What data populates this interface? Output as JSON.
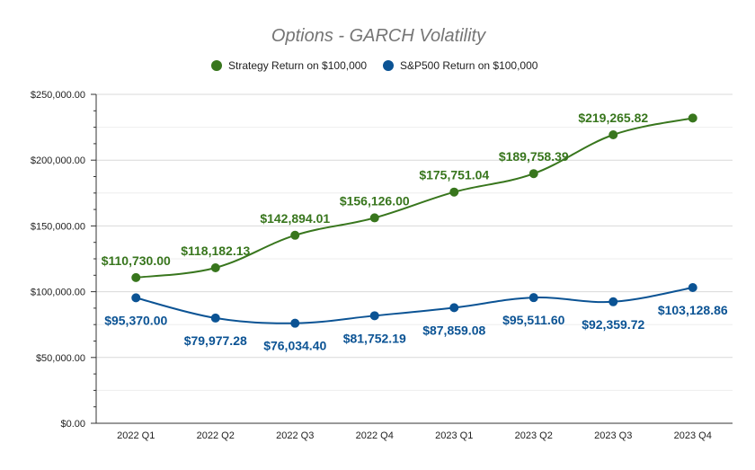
{
  "chart_data": {
    "type": "line",
    "title": "Options - GARCH Volatility",
    "xlabel": "",
    "ylabel": "",
    "categories": [
      "2022 Q1",
      "2022 Q2",
      "2022 Q3",
      "2022 Q4",
      "2023 Q1",
      "2023 Q2",
      "2023 Q3",
      "2023 Q4"
    ],
    "ylim": [
      0,
      250000
    ],
    "yticks": [
      0,
      50000,
      100000,
      150000,
      200000,
      250000
    ],
    "ytick_labels": [
      "$0.00",
      "$50,000.00",
      "$100,000.00",
      "$150,000.00",
      "$200,000.00",
      "$250,000.00"
    ],
    "grid": true,
    "legend_position": "top",
    "series": [
      {
        "name": "Strategy Return on $100,000",
        "color": "#38761d",
        "values": [
          110730.0,
          118182.13,
          142894.01,
          156126.0,
          175751.04,
          189758.39,
          219265.82,
          232000
        ],
        "labels": [
          "$110,730.00",
          "$118,182.13",
          "$142,894.01",
          "$156,126.00",
          "$175,751.04",
          "$189,758.39",
          "$219,265.82",
          ""
        ],
        "label_position": "above"
      },
      {
        "name": "S&P500 Return on $100,000",
        "color": "#0b5394",
        "values": [
          95370.0,
          79977.28,
          76034.4,
          81752.19,
          87859.08,
          95511.6,
          92359.72,
          103128.86
        ],
        "labels": [
          "$95,370.00",
          "$79,977.28",
          "$76,034.40",
          "$81,752.19",
          "$87,859.08",
          "$95,511.60",
          "$92,359.72",
          "$103,128.86"
        ],
        "label_position": "below"
      }
    ]
  }
}
